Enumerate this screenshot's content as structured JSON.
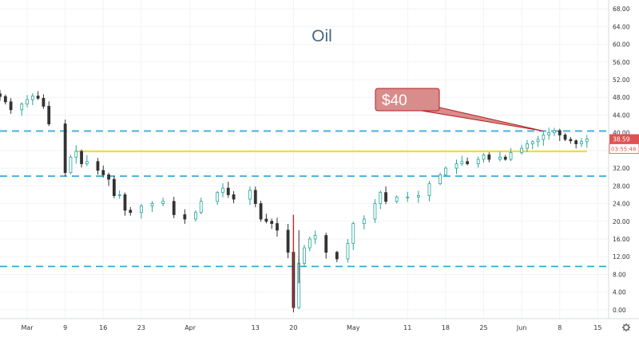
{
  "chart_data": {
    "type": "candlestick",
    "title": "Oil",
    "annotation": {
      "text": "$40",
      "target_date": "2020-06-05",
      "target_price": 40.4
    },
    "x_ticks": [
      {
        "label": "Mar",
        "date": "2020-03-02"
      },
      {
        "label": "9",
        "date": "2020-03-09"
      },
      {
        "label": "16",
        "date": "2020-03-16"
      },
      {
        "label": "23",
        "date": "2020-03-23"
      },
      {
        "label": "Apr",
        "date": "2020-04-01"
      },
      {
        "label": "13",
        "date": "2020-04-13"
      },
      {
        "label": "20",
        "date": "2020-04-20"
      },
      {
        "label": "May",
        "date": "2020-05-01"
      },
      {
        "label": "11",
        "date": "2020-05-11"
      },
      {
        "label": "18",
        "date": "2020-05-18"
      },
      {
        "label": "25",
        "date": "2020-05-25"
      },
      {
        "label": "Jun",
        "date": "2020-06-01"
      },
      {
        "label": "8",
        "date": "2020-06-08"
      },
      {
        "label": "15",
        "date": "2020-06-15"
      }
    ],
    "y_ticks": [
      0,
      4,
      8,
      12,
      16,
      20,
      24,
      28,
      32,
      36,
      40,
      44,
      48,
      52,
      56,
      60,
      64,
      68
    ],
    "y_tick_labels": [
      "0.00",
      "4.00",
      "8.00",
      "12.00",
      "16.00",
      "20.00",
      "24.00",
      "28.00",
      "32.00",
      "36.00",
      "40.00",
      "44.00",
      "48.00",
      "52.00",
      "56.00",
      "60.00",
      "64.00",
      "68.00"
    ],
    "ylim": [
      -2,
      70
    ],
    "xlim": [
      "2020-02-26",
      "2020-06-17"
    ],
    "price_label": {
      "value": 38.59,
      "text": "38.59"
    },
    "countdown_label": {
      "text": "03:55:48"
    },
    "horizontal_lines": [
      {
        "style": "dashed",
        "color": "#29a3d9",
        "value": 40.4
      },
      {
        "style": "dashed",
        "color": "#29a3d9",
        "value": 30.2
      },
      {
        "style": "dashed",
        "color": "#29a3d9",
        "value": 9.8
      },
      {
        "style": "solid",
        "color": "#f2dc3a",
        "value": 35.8,
        "from_date": "2020-03-11",
        "to_date": "2020-06-13"
      }
    ],
    "series_points": [
      [
        "2020-02-26",
        48.2
      ],
      [
        "2020-02-27",
        47.0
      ],
      [
        "2020-02-28",
        45.2
      ],
      [
        "2020-03-01",
        46.5
      ],
      [
        "2020-03-02",
        47.5
      ],
      [
        "2020-03-03",
        48.3
      ],
      [
        "2020-03-04",
        47.8
      ],
      [
        "2020-03-05",
        46.0
      ],
      [
        "2020-03-06",
        42.0
      ],
      [
        "2020-03-09",
        31.0
      ],
      [
        "2020-03-10",
        34.5
      ],
      [
        "2020-03-11",
        35.8
      ],
      [
        "2020-03-12",
        33.0
      ],
      [
        "2020-03-13",
        33.5
      ],
      [
        "2020-03-15",
        31.5
      ],
      [
        "2020-03-16",
        30.5
      ],
      [
        "2020-03-17",
        29.5
      ],
      [
        "2020-03-18",
        25.8
      ],
      [
        "2020-03-19",
        26.0
      ],
      [
        "2020-03-20",
        22.5
      ],
      [
        "2020-03-21",
        22.0
      ],
      [
        "2020-03-23",
        23.5
      ],
      [
        "2020-03-25",
        24.0
      ],
      [
        "2020-03-27",
        24.5
      ],
      [
        "2020-03-29",
        21.5
      ],
      [
        "2020-03-31",
        20.5
      ],
      [
        "2020-04-02",
        22.0
      ],
      [
        "2020-04-03",
        24.5
      ],
      [
        "2020-04-06",
        26.5
      ],
      [
        "2020-04-07",
        27.5
      ],
      [
        "2020-04-08",
        26.0
      ],
      [
        "2020-04-09",
        25.0
      ],
      [
        "2020-04-12",
        27.0
      ],
      [
        "2020-04-13",
        24.0
      ],
      [
        "2020-04-14",
        20.5
      ],
      [
        "2020-04-15",
        20.0
      ],
      [
        "2020-04-16",
        19.5
      ],
      [
        "2020-04-17",
        18.0
      ],
      [
        "2020-04-19",
        13.0
      ],
      [
        "2020-04-20",
        0.5
      ],
      [
        "2020-04-21",
        10.5
      ],
      [
        "2020-04-22",
        14.0
      ],
      [
        "2020-04-23",
        16.0
      ],
      [
        "2020-04-24",
        16.8
      ],
      [
        "2020-04-26",
        13.0
      ],
      [
        "2020-04-28",
        11.5
      ],
      [
        "2020-04-30",
        15.0
      ],
      [
        "2020-05-01",
        19.5
      ],
      [
        "2020-05-03",
        20.5
      ],
      [
        "2020-05-05",
        24.0
      ],
      [
        "2020-05-06",
        26.5
      ],
      [
        "2020-05-07",
        24.5
      ],
      [
        "2020-05-09",
        25.5
      ],
      [
        "2020-05-11",
        25.5
      ],
      [
        "2020-05-13",
        25.8
      ],
      [
        "2020-05-15",
        28.5
      ],
      [
        "2020-05-17",
        30.5
      ],
      [
        "2020-05-18",
        32.0
      ],
      [
        "2020-05-20",
        33.0
      ],
      [
        "2020-05-21",
        33.5
      ],
      [
        "2020-05-22",
        33.0
      ],
      [
        "2020-05-24",
        34.0
      ],
      [
        "2020-05-25",
        35.0
      ],
      [
        "2020-05-26",
        34.0
      ],
      [
        "2020-05-28",
        34.5
      ],
      [
        "2020-05-29",
        34.0
      ],
      [
        "2020-05-30",
        35.5
      ],
      [
        "2020-06-01",
        36.5
      ],
      [
        "2020-06-02",
        37.5
      ],
      [
        "2020-06-03",
        38.0
      ],
      [
        "2020-06-04",
        38.5
      ],
      [
        "2020-06-05",
        39.5
      ],
      [
        "2020-06-06",
        40.0
      ],
      [
        "2020-06-07",
        40.5
      ],
      [
        "2020-06-08",
        39.5
      ],
      [
        "2020-06-09",
        38.5
      ],
      [
        "2020-06-10",
        38.2
      ],
      [
        "2020-06-11",
        37.5
      ],
      [
        "2020-06-12",
        38.0
      ],
      [
        "2020-06-13",
        38.59
      ]
    ],
    "colors": {
      "up": "#26a69a",
      "down": "#333333",
      "body_up": "#ffffff",
      "body_down": "#333333",
      "grid": "#f0f3f5",
      "dashed": "#29a3d9",
      "support": "#f2dc3a",
      "annotation_fill": "#d98c8c",
      "annotation_stroke": "#b21f1f",
      "price_label_bg": "#e05252",
      "title": "#4a6781"
    },
    "grid": true
  }
}
